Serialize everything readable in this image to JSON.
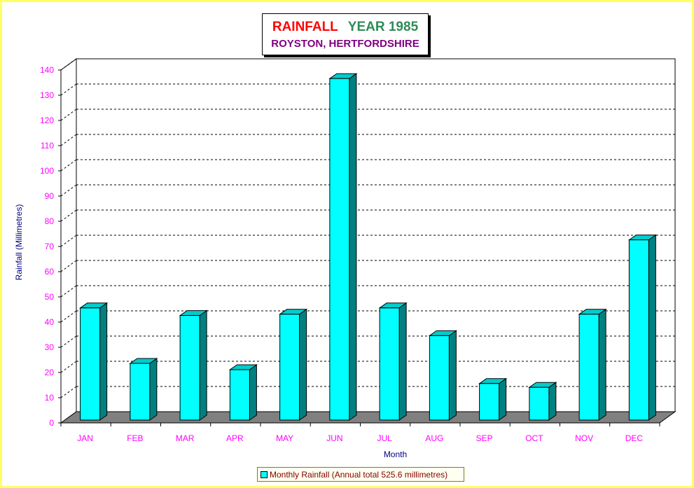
{
  "chart_data": {
    "type": "bar",
    "title": "RAINFALL",
    "title_year": "YEAR 1985",
    "subtitle": "ROYSTON, HERTFORDSHIRE",
    "xlabel": "Month",
    "ylabel": "Rainfall  (Millimetres)",
    "ylim": [
      0,
      140
    ],
    "yticks": [
      0,
      10,
      20,
      30,
      40,
      50,
      60,
      70,
      80,
      90,
      100,
      110,
      120,
      130,
      140
    ],
    "categories": [
      "JAN",
      "FEB",
      "MAR",
      "APR",
      "MAY",
      "JUN",
      "JUL",
      "AUG",
      "SEP",
      "OCT",
      "NOV",
      "DEC"
    ],
    "series": [
      {
        "name": "Monthly Rainfall (Annual total 525.6 millimetres)",
        "values": [
          44.5,
          22.5,
          41.5,
          20.0,
          42.0,
          135.5,
          44.5,
          33.5,
          14.5,
          13.0,
          42.0,
          71.5
        ]
      }
    ],
    "grid": true,
    "legend_position": "bottom",
    "colors": {
      "bar_front": "#00ffff",
      "bar_side": "#008080",
      "axis_text": "#ff00ff",
      "axis_title": "#000080",
      "floor": "#808080",
      "border": "#ffff66"
    }
  }
}
